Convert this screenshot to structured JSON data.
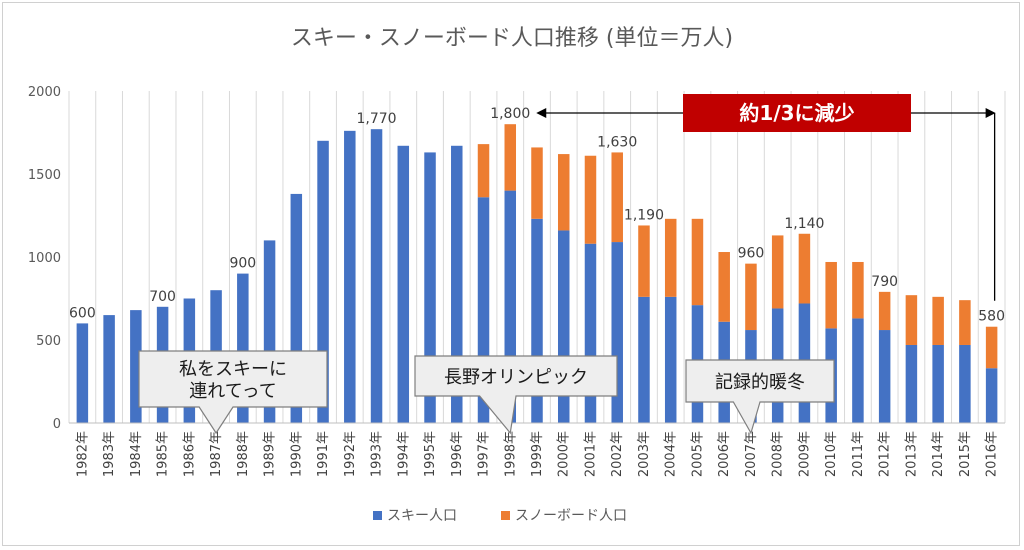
{
  "chart_data": {
    "type": "bar",
    "stacked": true,
    "title": "スキー・スノーボード人口推移 (単位＝万人)",
    "categories": [
      "1982年",
      "1983年",
      "1984年",
      "1985年",
      "1986年",
      "1987年",
      "1988年",
      "1989年",
      "1990年",
      "1991年",
      "1992年",
      "1993年",
      "1994年",
      "1995年",
      "1996年",
      "1997年",
      "1998年",
      "1999年",
      "2000年",
      "2001年",
      "2002年",
      "2003年",
      "2004年",
      "2005年",
      "2006年",
      "2007年",
      "2008年",
      "2009年",
      "2010年",
      "2011年",
      "2012年",
      "2013年",
      "2014年",
      "2015年",
      "2016年"
    ],
    "series": [
      {
        "name": "スキー人口",
        "color": "#4472c4",
        "values": [
          600,
          650,
          680,
          700,
          750,
          800,
          900,
          1100,
          1380,
          1700,
          1760,
          1770,
          1670,
          1630,
          1670,
          1360,
          1400,
          1230,
          1160,
          1080,
          1090,
          760,
          760,
          710,
          610,
          560,
          690,
          720,
          570,
          630,
          560,
          470,
          470,
          470,
          330
        ]
      },
      {
        "name": "スノーボード人口",
        "color": "#ed7d31",
        "values": [
          0,
          0,
          0,
          0,
          0,
          0,
          0,
          0,
          0,
          0,
          0,
          0,
          0,
          0,
          0,
          320,
          400,
          430,
          460,
          530,
          540,
          430,
          470,
          520,
          420,
          400,
          440,
          420,
          400,
          340,
          230,
          300,
          290,
          270,
          250
        ]
      }
    ],
    "ylim": [
      0,
      2000
    ],
    "yticks": [
      0,
      500,
      1000,
      1500,
      2000
    ],
    "grid": "vertical",
    "legend": "bottom",
    "data_labels": [
      {
        "category": "1982年",
        "text": "600"
      },
      {
        "category": "1985年",
        "text": "700"
      },
      {
        "category": "1988年",
        "text": "900"
      },
      {
        "category": "1993年",
        "text": "1,770"
      },
      {
        "category": "1998年",
        "text": "1,800"
      },
      {
        "category": "2002年",
        "text": "1,630"
      },
      {
        "category": "2003年",
        "text": "1,190"
      },
      {
        "category": "2007年",
        "text": "960"
      },
      {
        "category": "2009年",
        "text": "1,140"
      },
      {
        "category": "2012年",
        "text": "790"
      },
      {
        "category": "2016年",
        "text": "580"
      }
    ],
    "annotations": {
      "banner": {
        "text": "約1/3に減少",
        "color": "#c00000",
        "from_category": "1998年",
        "to_category": "2016年"
      },
      "callouts": [
        {
          "text_lines": [
            "私をスキーに",
            "連れてって"
          ],
          "points_to": "1987年"
        },
        {
          "text_lines": [
            "長野オリンピック"
          ],
          "points_to": "1998年"
        },
        {
          "text_lines": [
            "記録的暖冬"
          ],
          "points_to": "2007年"
        }
      ]
    }
  }
}
